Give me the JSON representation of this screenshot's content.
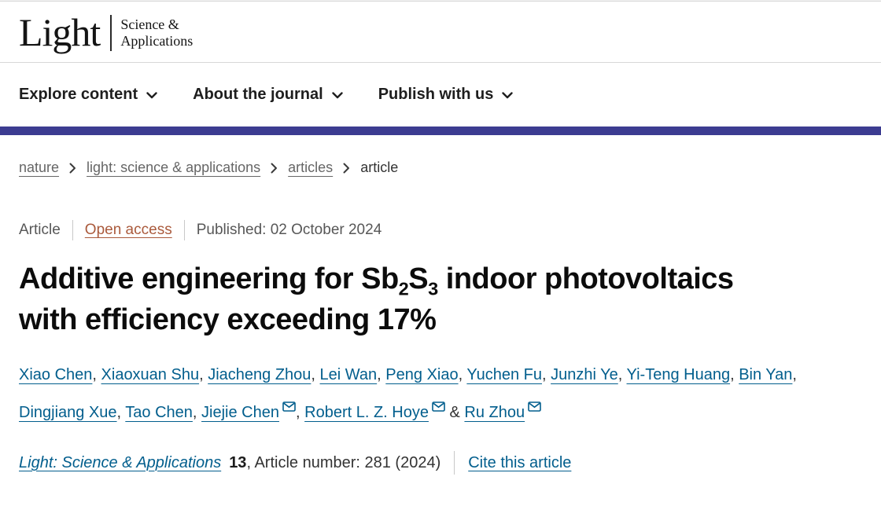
{
  "colors": {
    "accent_bar": "#3c3c91",
    "link_teal": "#025e8d",
    "open_access": "#aa5a3c"
  },
  "header": {
    "logo": {
      "title": "Light",
      "subtitle_line1": "Science &",
      "subtitle_line2": "Applications"
    },
    "nav": [
      {
        "label": "Explore content"
      },
      {
        "label": "About the journal"
      },
      {
        "label": "Publish with us"
      }
    ]
  },
  "breadcrumb": [
    {
      "label": "nature",
      "link": true
    },
    {
      "label": "light: science & applications",
      "link": true
    },
    {
      "label": "articles",
      "link": true
    },
    {
      "label": "article",
      "link": false
    }
  ],
  "article": {
    "meta": {
      "type_label": "Article",
      "open_access_label": "Open access",
      "published_label": "Published: 02 October 2024"
    },
    "title_segments": [
      {
        "text": "Additive engineering for Sb"
      },
      {
        "text": "2",
        "sub": true
      },
      {
        "text": "S"
      },
      {
        "text": "3",
        "sub": true
      },
      {
        "text": " indoor photovoltaics"
      },
      {
        "br": true
      },
      {
        "text": "with efficiency exceeding 17%"
      }
    ],
    "authors_meta": {
      "separator": ", ",
      "last_separator": "&"
    },
    "authors": [
      {
        "name": "Xiao Chen"
      },
      {
        "name": "Xiaoxuan Shu"
      },
      {
        "name": "Jiacheng Zhou"
      },
      {
        "name": "Lei Wan"
      },
      {
        "name": "Peng Xiao"
      },
      {
        "name": "Yuchen Fu"
      },
      {
        "name": "Junzhi Ye"
      },
      {
        "name": "Yi-Teng Huang"
      },
      {
        "name": "Bin Yan"
      },
      {
        "name": "Dingjiang Xue"
      },
      {
        "name": "Tao Chen"
      },
      {
        "name": "Jiejie Chen",
        "email": true
      },
      {
        "name": "Robert L. Z. Hoye",
        "email": true
      },
      {
        "name": "Ru Zhou",
        "email": true
      }
    ],
    "citation": {
      "journal": "Light: Science & Applications",
      "volume": "13",
      "article_number_text": ", Article number: 281 (2024)",
      "cite_label": "Cite this article"
    }
  }
}
